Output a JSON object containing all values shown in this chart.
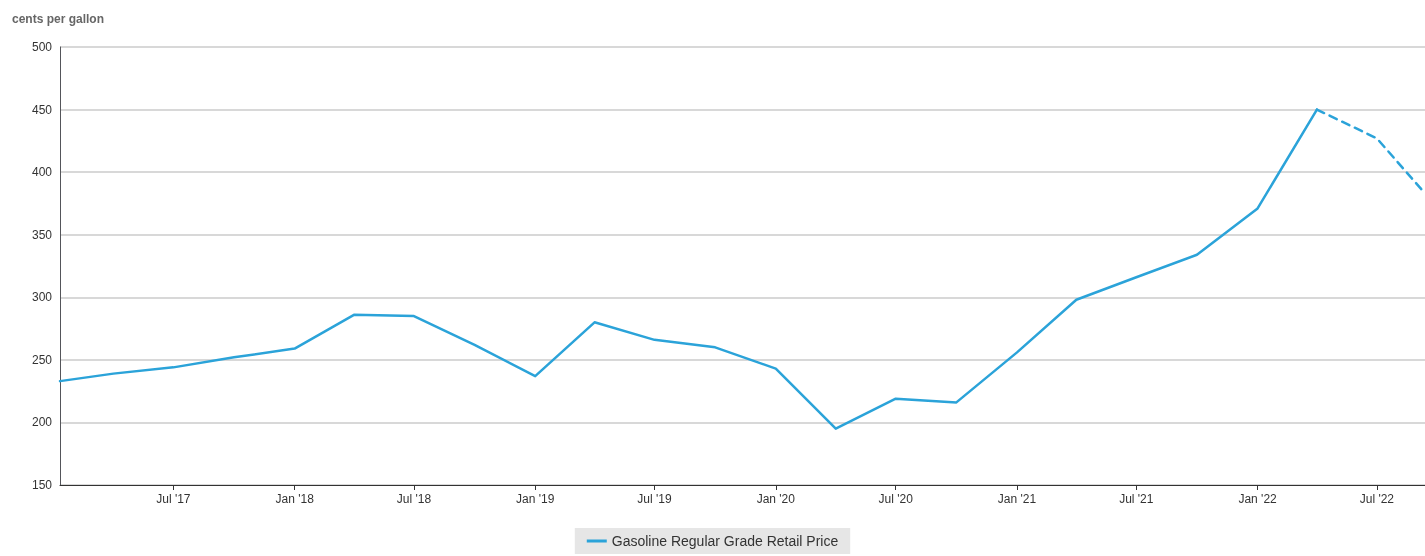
{
  "chart_data": {
    "type": "line",
    "ylabel": "cents per gallon",
    "xlim": [
      "2017-01-10",
      "2022-09-12"
    ],
    "ylim": [
      150,
      500
    ],
    "yticks": [
      150,
      200,
      250,
      300,
      350,
      400,
      450,
      500
    ],
    "xticks": [
      {
        "value": "2017-07",
        "label": "Jul '17"
      },
      {
        "value": "2018-01",
        "label": "Jan '18"
      },
      {
        "value": "2018-07",
        "label": "Jul '18"
      },
      {
        "value": "2019-01",
        "label": "Jan '19"
      },
      {
        "value": "2019-07",
        "label": "Jul '19"
      },
      {
        "value": "2020-01",
        "label": "Jan '20"
      },
      {
        "value": "2020-07",
        "label": "Jul '20"
      },
      {
        "value": "2021-01",
        "label": "Jan '21"
      },
      {
        "value": "2021-07",
        "label": "Jul '21"
      },
      {
        "value": "2022-01",
        "label": "Jan '22"
      },
      {
        "value": "2022-07",
        "label": "Jul '22"
      }
    ],
    "grid": "y",
    "legend": "bottom",
    "marker": "none",
    "series": [
      {
        "name": "Gasoline Regular Grade Retail Price",
        "color": "#2ba3d9",
        "line_style": "solid",
        "x": [
          "2017-01-10",
          "2017-04",
          "2017-07",
          "2017-10",
          "2018-01",
          "2018-04",
          "2018-07",
          "2018-10",
          "2019-01",
          "2019-04",
          "2019-07",
          "2019-10",
          "2020-01",
          "2020-04",
          "2020-07",
          "2020-10",
          "2021-01",
          "2021-04",
          "2021-07",
          "2021-10",
          "2022-01",
          "2022-04"
        ],
        "values": [
          233,
          239,
          244,
          252,
          259,
          286,
          285,
          262,
          237,
          280,
          266,
          260,
          243,
          195,
          219,
          216,
          256,
          298,
          316,
          334,
          371,
          450
        ]
      },
      {
        "color": "#2ba3d9",
        "line_style": "dashed",
        "x": [
          "2022-04",
          "2022-07",
          "2022-09-12"
        ],
        "values": [
          450,
          427,
          383
        ]
      }
    ]
  }
}
